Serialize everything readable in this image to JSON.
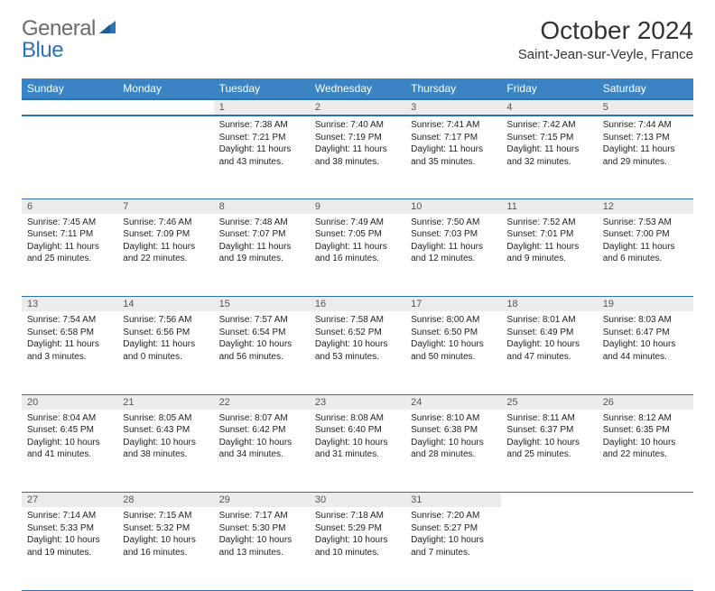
{
  "brand": {
    "name_a": "General",
    "name_b": "Blue"
  },
  "title": "October 2024",
  "location": "Saint-Jean-sur-Veyle, France",
  "colors": {
    "header_bg": "#3b84c4",
    "header_border": "#2d72b8",
    "daynum_bg": "#ececec",
    "text": "#222222",
    "logo_gray": "#6b6b6b",
    "logo_blue": "#2d72b8"
  },
  "day_headers": [
    "Sunday",
    "Monday",
    "Tuesday",
    "Wednesday",
    "Thursday",
    "Friday",
    "Saturday"
  ],
  "weeks": [
    [
      {
        "n": "",
        "sunrise": "",
        "sunset": "",
        "daylight": ""
      },
      {
        "n": "",
        "sunrise": "",
        "sunset": "",
        "daylight": ""
      },
      {
        "n": "1",
        "sunrise": "Sunrise: 7:38 AM",
        "sunset": "Sunset: 7:21 PM",
        "daylight": "Daylight: 11 hours and 43 minutes."
      },
      {
        "n": "2",
        "sunrise": "Sunrise: 7:40 AM",
        "sunset": "Sunset: 7:19 PM",
        "daylight": "Daylight: 11 hours and 38 minutes."
      },
      {
        "n": "3",
        "sunrise": "Sunrise: 7:41 AM",
        "sunset": "Sunset: 7:17 PM",
        "daylight": "Daylight: 11 hours and 35 minutes."
      },
      {
        "n": "4",
        "sunrise": "Sunrise: 7:42 AM",
        "sunset": "Sunset: 7:15 PM",
        "daylight": "Daylight: 11 hours and 32 minutes."
      },
      {
        "n": "5",
        "sunrise": "Sunrise: 7:44 AM",
        "sunset": "Sunset: 7:13 PM",
        "daylight": "Daylight: 11 hours and 29 minutes."
      }
    ],
    [
      {
        "n": "6",
        "sunrise": "Sunrise: 7:45 AM",
        "sunset": "Sunset: 7:11 PM",
        "daylight": "Daylight: 11 hours and 25 minutes."
      },
      {
        "n": "7",
        "sunrise": "Sunrise: 7:46 AM",
        "sunset": "Sunset: 7:09 PM",
        "daylight": "Daylight: 11 hours and 22 minutes."
      },
      {
        "n": "8",
        "sunrise": "Sunrise: 7:48 AM",
        "sunset": "Sunset: 7:07 PM",
        "daylight": "Daylight: 11 hours and 19 minutes."
      },
      {
        "n": "9",
        "sunrise": "Sunrise: 7:49 AM",
        "sunset": "Sunset: 7:05 PM",
        "daylight": "Daylight: 11 hours and 16 minutes."
      },
      {
        "n": "10",
        "sunrise": "Sunrise: 7:50 AM",
        "sunset": "Sunset: 7:03 PM",
        "daylight": "Daylight: 11 hours and 12 minutes."
      },
      {
        "n": "11",
        "sunrise": "Sunrise: 7:52 AM",
        "sunset": "Sunset: 7:01 PM",
        "daylight": "Daylight: 11 hours and 9 minutes."
      },
      {
        "n": "12",
        "sunrise": "Sunrise: 7:53 AM",
        "sunset": "Sunset: 7:00 PM",
        "daylight": "Daylight: 11 hours and 6 minutes."
      }
    ],
    [
      {
        "n": "13",
        "sunrise": "Sunrise: 7:54 AM",
        "sunset": "Sunset: 6:58 PM",
        "daylight": "Daylight: 11 hours and 3 minutes."
      },
      {
        "n": "14",
        "sunrise": "Sunrise: 7:56 AM",
        "sunset": "Sunset: 6:56 PM",
        "daylight": "Daylight: 11 hours and 0 minutes."
      },
      {
        "n": "15",
        "sunrise": "Sunrise: 7:57 AM",
        "sunset": "Sunset: 6:54 PM",
        "daylight": "Daylight: 10 hours and 56 minutes."
      },
      {
        "n": "16",
        "sunrise": "Sunrise: 7:58 AM",
        "sunset": "Sunset: 6:52 PM",
        "daylight": "Daylight: 10 hours and 53 minutes."
      },
      {
        "n": "17",
        "sunrise": "Sunrise: 8:00 AM",
        "sunset": "Sunset: 6:50 PM",
        "daylight": "Daylight: 10 hours and 50 minutes."
      },
      {
        "n": "18",
        "sunrise": "Sunrise: 8:01 AM",
        "sunset": "Sunset: 6:49 PM",
        "daylight": "Daylight: 10 hours and 47 minutes."
      },
      {
        "n": "19",
        "sunrise": "Sunrise: 8:03 AM",
        "sunset": "Sunset: 6:47 PM",
        "daylight": "Daylight: 10 hours and 44 minutes."
      }
    ],
    [
      {
        "n": "20",
        "sunrise": "Sunrise: 8:04 AM",
        "sunset": "Sunset: 6:45 PM",
        "daylight": "Daylight: 10 hours and 41 minutes."
      },
      {
        "n": "21",
        "sunrise": "Sunrise: 8:05 AM",
        "sunset": "Sunset: 6:43 PM",
        "daylight": "Daylight: 10 hours and 38 minutes."
      },
      {
        "n": "22",
        "sunrise": "Sunrise: 8:07 AM",
        "sunset": "Sunset: 6:42 PM",
        "daylight": "Daylight: 10 hours and 34 minutes."
      },
      {
        "n": "23",
        "sunrise": "Sunrise: 8:08 AM",
        "sunset": "Sunset: 6:40 PM",
        "daylight": "Daylight: 10 hours and 31 minutes."
      },
      {
        "n": "24",
        "sunrise": "Sunrise: 8:10 AM",
        "sunset": "Sunset: 6:38 PM",
        "daylight": "Daylight: 10 hours and 28 minutes."
      },
      {
        "n": "25",
        "sunrise": "Sunrise: 8:11 AM",
        "sunset": "Sunset: 6:37 PM",
        "daylight": "Daylight: 10 hours and 25 minutes."
      },
      {
        "n": "26",
        "sunrise": "Sunrise: 8:12 AM",
        "sunset": "Sunset: 6:35 PM",
        "daylight": "Daylight: 10 hours and 22 minutes."
      }
    ],
    [
      {
        "n": "27",
        "sunrise": "Sunrise: 7:14 AM",
        "sunset": "Sunset: 5:33 PM",
        "daylight": "Daylight: 10 hours and 19 minutes."
      },
      {
        "n": "28",
        "sunrise": "Sunrise: 7:15 AM",
        "sunset": "Sunset: 5:32 PM",
        "daylight": "Daylight: 10 hours and 16 minutes."
      },
      {
        "n": "29",
        "sunrise": "Sunrise: 7:17 AM",
        "sunset": "Sunset: 5:30 PM",
        "daylight": "Daylight: 10 hours and 13 minutes."
      },
      {
        "n": "30",
        "sunrise": "Sunrise: 7:18 AM",
        "sunset": "Sunset: 5:29 PM",
        "daylight": "Daylight: 10 hours and 10 minutes."
      },
      {
        "n": "31",
        "sunrise": "Sunrise: 7:20 AM",
        "sunset": "Sunset: 5:27 PM",
        "daylight": "Daylight: 10 hours and 7 minutes."
      },
      {
        "n": "",
        "sunrise": "",
        "sunset": "",
        "daylight": ""
      },
      {
        "n": "",
        "sunrise": "",
        "sunset": "",
        "daylight": ""
      }
    ]
  ]
}
